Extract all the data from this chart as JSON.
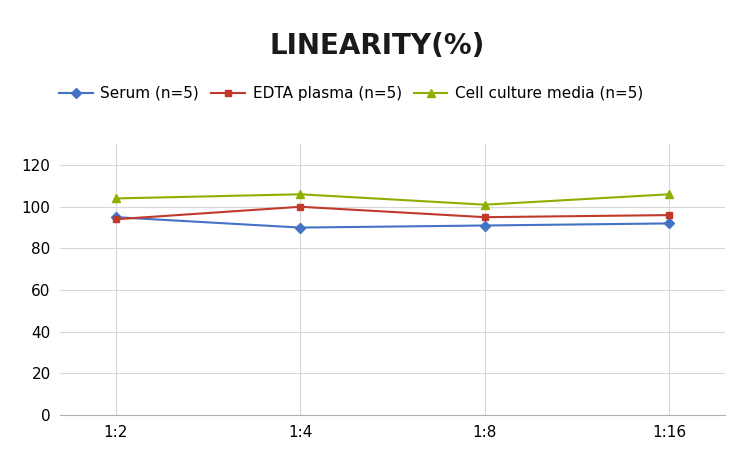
{
  "title": "LINEARITY(%)",
  "x_labels": [
    "1:2",
    "1:4",
    "1:8",
    "1:16"
  ],
  "x_positions": [
    0,
    1,
    2,
    3
  ],
  "series": [
    {
      "label": "Serum (n=5)",
      "values": [
        95,
        90,
        91,
        92
      ],
      "color": "#4472C4",
      "marker": "D",
      "markersize": 5
    },
    {
      "label": "EDTA plasma (n=5)",
      "values": [
        94,
        100,
        95,
        96
      ],
      "color": "#C0392B",
      "marker": "s",
      "markersize": 5
    },
    {
      "label": "Cell culture media (n=5)",
      "values": [
        104,
        106,
        101,
        106
      ],
      "color": "#8DB000",
      "marker": "^",
      "markersize": 6
    }
  ],
  "ylim": [
    0,
    130
  ],
  "yticks": [
    0,
    20,
    40,
    60,
    80,
    100,
    120
  ],
  "title_fontsize": 20,
  "legend_fontsize": 11,
  "tick_fontsize": 11,
  "background_color": "#ffffff",
  "grid_color": "#d8d8d8"
}
